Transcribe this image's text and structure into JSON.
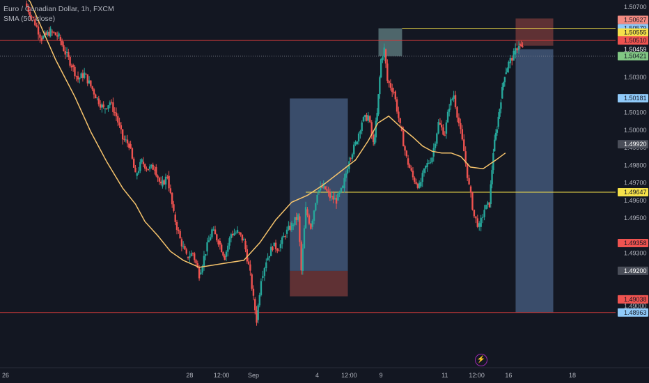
{
  "header": {
    "symbol": "Euro / Canadian Dollar, 1h, FXCM",
    "indicator": "SMA (50, close)"
  },
  "alert_icon": "lightning-bolt-icon",
  "colors": {
    "background": "#131722",
    "bull": "#26a69a",
    "bear": "#ef5350",
    "sma": "#f7c46c",
    "level_yellow": "#f5e14a",
    "level_red": "#d23b3b",
    "target_zone": "#5b7aa8",
    "stop_zone": "#7a3b3b"
  },
  "chart_data": {
    "type": "candlestick",
    "symbol": "EURCAD",
    "timeframe": "1h",
    "ylim": [
      1.4878,
      1.5074
    ],
    "y_ticks": [
      1.49,
      1.492,
      1.493,
      1.495,
      1.496,
      1.497,
      1.498,
      1.499,
      1.5,
      1.501,
      1.503,
      1.507
    ],
    "x_ticks": [
      {
        "label": "26",
        "day": 26.0
      },
      {
        "label": "28",
        "day": 28.0
      },
      {
        "label": "12:00",
        "day": 28.5
      },
      {
        "label": "Sep",
        "day": 29.0
      },
      {
        "label": "4",
        "day": 30.0
      },
      {
        "label": "12:00",
        "day": 30.5
      },
      {
        "label": "9",
        "day": 31.0
      },
      {
        "label": "11",
        "day": 32.0
      },
      {
        "label": "12:00",
        "day": 32.5
      },
      {
        "label": "16",
        "day": 33.0
      },
      {
        "label": "18",
        "day": 34.0
      }
    ],
    "price_path": [
      [
        25.42,
        1.5072
      ],
      [
        25.55,
        1.5063
      ],
      [
        25.68,
        1.5052
      ],
      [
        25.82,
        1.5056
      ],
      [
        25.95,
        1.5053
      ],
      [
        26.05,
        1.5044
      ],
      [
        26.15,
        1.5037
      ],
      [
        26.25,
        1.5029
      ],
      [
        26.35,
        1.5032
      ],
      [
        26.45,
        1.5025
      ],
      [
        26.55,
        1.5018
      ],
      [
        26.65,
        1.5012
      ],
      [
        26.75,
        1.5016
      ],
      [
        26.85,
        1.5008
      ],
      [
        26.95,
        1.4995
      ],
      [
        27.05,
        1.4992
      ],
      [
        27.15,
        1.4974
      ],
      [
        27.25,
        1.4982
      ],
      [
        27.35,
        1.4978
      ],
      [
        27.45,
        1.4979
      ],
      [
        27.55,
        1.4968
      ],
      [
        27.65,
        1.4974
      ],
      [
        27.75,
        1.4952
      ],
      [
        27.85,
        1.4938
      ],
      [
        27.95,
        1.4928
      ],
      [
        28.05,
        1.493
      ],
      [
        28.15,
        1.4918
      ],
      [
        28.25,
        1.4931
      ],
      [
        28.35,
        1.4943
      ],
      [
        28.45,
        1.4937
      ],
      [
        28.55,
        1.4928
      ],
      [
        28.65,
        1.4941
      ],
      [
        28.75,
        1.4942
      ],
      [
        28.85,
        1.4937
      ],
      [
        28.95,
        1.4918
      ],
      [
        29.0,
        1.4904
      ],
      [
        29.05,
        1.4892
      ],
      [
        29.12,
        1.4916
      ],
      [
        29.2,
        1.4926
      ],
      [
        29.3,
        1.4934
      ],
      [
        29.4,
        1.4933
      ],
      [
        29.5,
        1.4941
      ],
      [
        29.6,
        1.4946
      ],
      [
        29.7,
        1.4951
      ],
      [
        29.75,
        1.492
      ],
      [
        29.82,
        1.4955
      ],
      [
        29.9,
        1.4945
      ],
      [
        30.0,
        1.4965
      ],
      [
        30.1,
        1.4968
      ],
      [
        30.2,
        1.4962
      ],
      [
        30.3,
        1.496
      ],
      [
        30.4,
        1.4967
      ],
      [
        30.5,
        1.4984
      ],
      [
        30.6,
        1.4992
      ],
      [
        30.7,
        1.5005
      ],
      [
        30.8,
        1.5008
      ],
      [
        30.88,
        1.4992
      ],
      [
        30.94,
        1.5009
      ],
      [
        31.0,
        1.504
      ],
      [
        31.05,
        1.5046
      ],
      [
        31.1,
        1.5028
      ],
      [
        31.2,
        1.5022
      ],
      [
        31.3,
        1.5002
      ],
      [
        31.4,
        1.4984
      ],
      [
        31.5,
        1.4973
      ],
      [
        31.6,
        1.4968
      ],
      [
        31.7,
        1.4979
      ],
      [
        31.8,
        1.4985
      ],
      [
        31.9,
        1.5004
      ],
      [
        32.0,
        1.4998
      ],
      [
        32.07,
        1.5014
      ],
      [
        32.14,
        1.502
      ],
      [
        32.22,
        1.5004
      ],
      [
        32.3,
        1.4988
      ],
      [
        32.38,
        1.4968
      ],
      [
        32.46,
        1.4951
      ],
      [
        32.54,
        1.4945
      ],
      [
        32.62,
        1.4955
      ],
      [
        32.7,
        1.4958
      ],
      [
        32.76,
        1.4988
      ],
      [
        32.82,
        1.5002
      ],
      [
        32.88,
        1.5018
      ],
      [
        32.94,
        1.5032
      ],
      [
        33.0,
        1.5038
      ],
      [
        33.08,
        1.5043
      ],
      [
        33.16,
        1.5049
      ],
      [
        33.22,
        1.5046
      ]
    ],
    "sma": [
      [
        25.1,
        1.509
      ],
      [
        25.5,
        1.5073
      ],
      [
        25.9,
        1.504
      ],
      [
        26.2,
        1.5019
      ],
      [
        26.45,
        1.4999
      ],
      [
        26.7,
        1.4982
      ],
      [
        26.95,
        1.4967
      ],
      [
        27.15,
        1.4958
      ],
      [
        27.3,
        1.4948
      ],
      [
        27.5,
        1.494
      ],
      [
        27.7,
        1.4931
      ],
      [
        27.9,
        1.4926
      ],
      [
        28.15,
        1.4922
      ],
      [
        28.5,
        1.4924
      ],
      [
        28.85,
        1.4926
      ],
      [
        29.1,
        1.4936
      ],
      [
        29.35,
        1.4949
      ],
      [
        29.6,
        1.4959
      ],
      [
        29.85,
        1.4963
      ],
      [
        30.1,
        1.4969
      ],
      [
        30.35,
        1.4976
      ],
      [
        30.6,
        1.4983
      ],
      [
        30.8,
        1.4994
      ],
      [
        30.95,
        1.5004
      ],
      [
        31.12,
        1.5008
      ],
      [
        31.3,
        1.5002
      ],
      [
        31.5,
        1.4996
      ],
      [
        31.65,
        1.4991
      ],
      [
        31.8,
        1.4988
      ],
      [
        31.95,
        1.4987
      ],
      [
        32.1,
        1.4987
      ],
      [
        32.25,
        1.4985
      ],
      [
        32.4,
        1.4979
      ],
      [
        32.6,
        1.4978
      ],
      [
        32.8,
        1.4983
      ],
      [
        32.95,
        1.4987
      ]
    ],
    "horizontal_lines": [
      {
        "price": 1.50579,
        "color": "level_yellow",
        "from_day": 31.33
      },
      {
        "price": 1.5051,
        "color": "level_red",
        "from_day": 25.0
      },
      {
        "price": 1.50421,
        "color": "dotted",
        "from_day": 25.0
      },
      {
        "price": 1.49647,
        "color": "level_yellow",
        "from_day": 29.82
      },
      {
        "price": 1.48963,
        "color": "level_red",
        "from_day": 25.0
      }
    ],
    "zones": [
      {
        "name": "long-target-zone",
        "kind": "target",
        "x1": 29.57,
        "x2": 30.48,
        "y1": 1.5018,
        "y2": 1.492
      },
      {
        "name": "long-stop-zone",
        "kind": "stop",
        "x1": 29.57,
        "x2": 30.48,
        "y1": 1.492,
        "y2": 1.49055
      },
      {
        "name": "resistance-box",
        "kind": "box",
        "x1": 30.96,
        "x2": 31.33,
        "y1": 1.50579,
        "y2": 1.50421
      },
      {
        "name": "short-stop-zone",
        "kind": "stop",
        "x1": 33.11,
        "x2": 33.7,
        "y1": 1.50635,
        "y2": 1.5048
      },
      {
        "name": "short-target-zone",
        "kind": "target",
        "x1": 33.11,
        "x2": 33.7,
        "y1": 1.5046,
        "y2": 1.48963
      }
    ],
    "price_tags": [
      {
        "label": "1.50627",
        "price": 1.50627,
        "bg": "#f28b82",
        "fg": "#131722"
      },
      {
        "label": "1.50579",
        "price": 1.50579,
        "bg": "#90caf9",
        "fg": "#131722"
      },
      {
        "label": "1.50555",
        "price": 1.50555,
        "bg": "#f5e14a",
        "fg": "#131722"
      },
      {
        "label": "1.50510",
        "price": 1.5051,
        "bg": "#ef5350",
        "fg": "#131722"
      },
      {
        "label": "1.50459",
        "price": 1.50459,
        "bg": "#131722",
        "fg": "#ffffff"
      },
      {
        "label": "1.50421",
        "price": 1.50421,
        "bg": "#81c784",
        "fg": "#131722"
      },
      {
        "label": "1.50181",
        "price": 1.50181,
        "bg": "#90caf9",
        "fg": "#131722"
      },
      {
        "label": "1.49920",
        "price": 1.4992,
        "bg": "#4a4e59",
        "fg": "#ffffff"
      },
      {
        "label": "1.49647",
        "price": 1.49647,
        "bg": "#f5e14a",
        "fg": "#131722"
      },
      {
        "label": "1.49358",
        "price": 1.49358,
        "bg": "#ef5350",
        "fg": "#131722"
      },
      {
        "label": "1.49200",
        "price": 1.492,
        "bg": "#4a4e59",
        "fg": "#ffffff"
      },
      {
        "label": "1.49038",
        "price": 1.49038,
        "bg": "#ef5350",
        "fg": "#131722"
      },
      {
        "label": "1.48963",
        "price": 1.48963,
        "bg": "#90caf9",
        "fg": "#131722"
      }
    ]
  }
}
